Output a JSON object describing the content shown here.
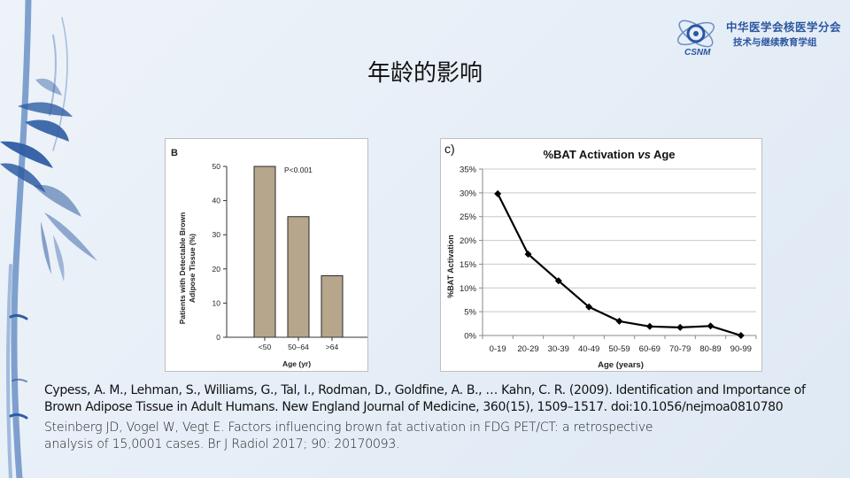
{
  "slide": {
    "title": "年龄的影响",
    "logo": {
      "mark": "CSNM",
      "line1": "中华医学会核医学分会",
      "line2": "技术与继续教育学组"
    },
    "references": [
      {
        "line1": "Cypess, A. M., Lehman, S., Williams, G., Tal, I., Rodman, D., Goldfine, A. B., … Kahn, C. R. (2009). Identification and Importance of",
        "line2": "Brown Adipose Tissue in Adult Humans. New England Journal of Medicine, 360(15), 1509–1517. doi:10.1056/nejmoa0810780"
      },
      {
        "line1": "Steinberg JD, Vogel W, Vegt E. Factors influencing  brown fat activation in FDG PET/CT: a retrospective",
        "line2": "analysis of 15,0001 cases.  Br J Radiol 2017; 90: 20170093."
      }
    ]
  },
  "colors": {
    "bar_fill": "#b5a68c",
    "bar_stroke": "#2a2a2a",
    "line": "#000000",
    "grid": "#c8c8c8",
    "logo_blue": "#2c56a0",
    "bamboo": "#2f5da3"
  },
  "chart_data": [
    {
      "type": "bar",
      "panel_label": "B",
      "title": "",
      "categories": [
        "<50",
        "50–64",
        ">64"
      ],
      "values": [
        50,
        35.3,
        18
      ],
      "xlabel": "Age (yr)",
      "ylabel_line1": "Patients with Detectable Brown",
      "ylabel_line2": "Adipose Tissue (%)",
      "ylim": [
        0,
        50
      ],
      "yticks": [
        "0",
        "10",
        "20",
        "30",
        "40",
        "50"
      ],
      "annotation": "P<0.001",
      "grid": false
    },
    {
      "type": "line",
      "panel_label": "c)",
      "title_part1": "%BAT Activation ",
      "title_italic": "vs",
      "title_part2": " Age",
      "categories": [
        "0-19",
        "20-29",
        "30-39",
        "40-49",
        "50-59",
        "60-69",
        "70-79",
        "80-89",
        "90-99"
      ],
      "values": [
        29.8,
        17.1,
        11.5,
        6.0,
        3.0,
        1.9,
        1.7,
        2.0,
        0.0
      ],
      "xlabel": "Age (years)",
      "ylabel": "%BAT Activation",
      "ylim": [
        0,
        35
      ],
      "yticks": [
        "0%",
        "5%",
        "10%",
        "15%",
        "20%",
        "25%",
        "30%",
        "35%"
      ],
      "grid": true,
      "marker": "diamond"
    }
  ]
}
